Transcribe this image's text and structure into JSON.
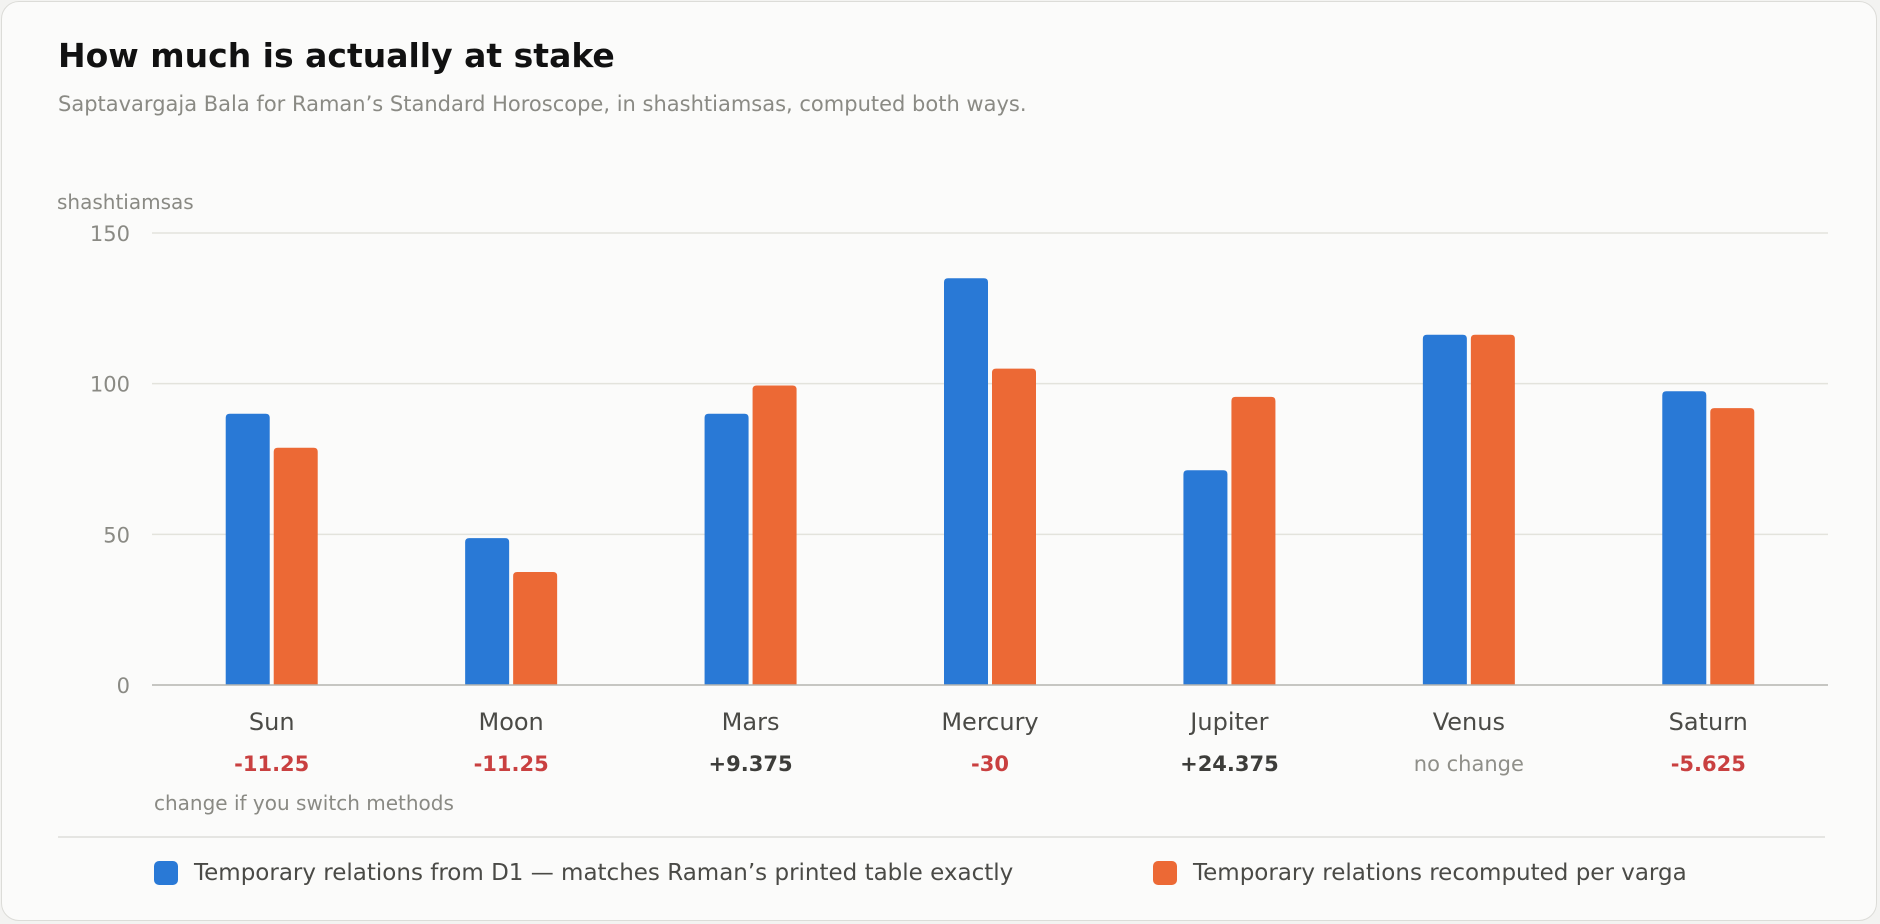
{
  "header": {
    "title": "How much is actually at stake",
    "subtitle": "Saptavargaja Bala for Raman’s Standard Horoscope, in shashtiamsas, computed both ways."
  },
  "chart_data": {
    "type": "bar",
    "ylabel": "shashtiamsas",
    "ylim": [
      0,
      150
    ],
    "yticks": [
      0,
      50,
      100,
      150
    ],
    "grid": true,
    "categories": [
      "Sun",
      "Moon",
      "Mars",
      "Mercury",
      "Jupiter",
      "Venus",
      "Saturn"
    ],
    "series": [
      {
        "name": "Temporary relations from D1 — matches Raman’s printed table exactly",
        "color": "#2979d6",
        "values": [
          90,
          48.75,
          90,
          135,
          71.25,
          116.25,
          97.5
        ]
      },
      {
        "name": "Temporary relations recomputed per varga",
        "color": "#ec6935",
        "values": [
          78.75,
          37.5,
          99.375,
          105,
          95.625,
          116.25,
          91.875
        ]
      }
    ],
    "changes": [
      "-11.25",
      "-11.25",
      "+9.375",
      "-30",
      "+24.375",
      "no change",
      "-5.625"
    ],
    "change_kinds": [
      "negative",
      "negative",
      "positive",
      "negative",
      "positive",
      "none",
      "negative"
    ],
    "change_caption": "change if you switch methods",
    "legend_position": "bottom"
  },
  "colors": {
    "negative": "#c94040",
    "positive": "#3d3d3a",
    "none": "#8f8f89",
    "grid": "#e3e3dc",
    "axis": "#b5b5b0",
    "muted_text": "#8a8a84",
    "category_text": "#4a4a46"
  }
}
